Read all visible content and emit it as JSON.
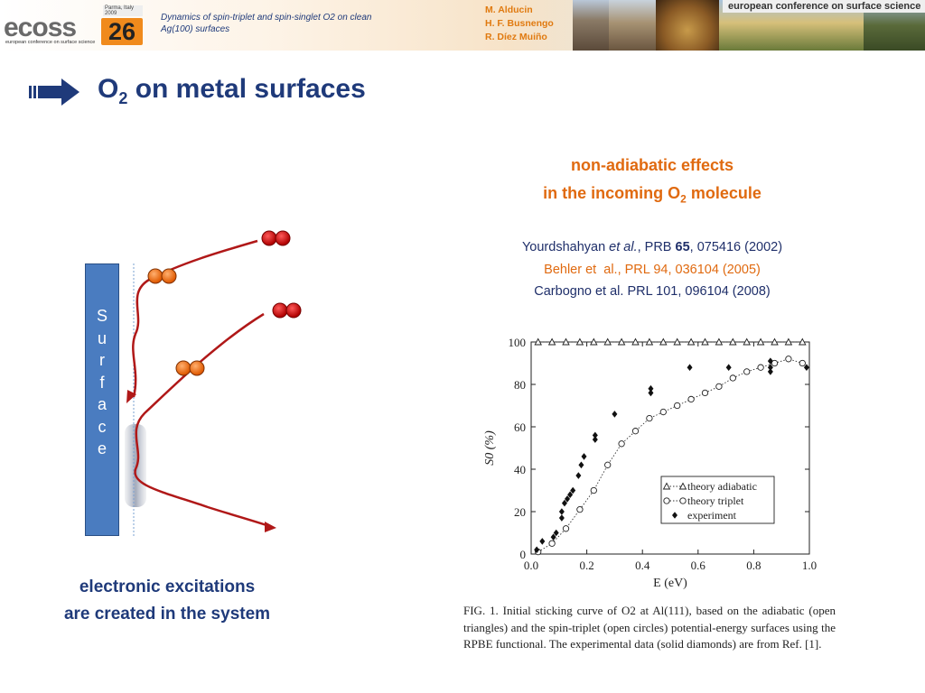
{
  "header": {
    "logo_text": "ecoss",
    "logo_number": "26",
    "logo_tag": "Parma, Italy 2009",
    "logo_sub": "european conference on surface science",
    "talk_title": "Dynamics of spin-triplet and spin-singlet O2 on clean Ag(100) surfaces",
    "authors": [
      "M. Alducin",
      "H. F. Busnengo",
      "R. Díez Muiño"
    ],
    "conference_banner": "european conference on surface science"
  },
  "slide": {
    "title_main": "O",
    "title_sub": "2",
    "title_rest": " on metal surfaces"
  },
  "right": {
    "heading_line1": "non-adiabatic effects",
    "heading_line2_pre": "in the incoming O",
    "heading_line2_sub": "2",
    "heading_line2_post": " molecule",
    "references": {
      "ref1_pre": "Yourdshahyan ",
      "ref1_etal": "et al.",
      "ref1_mid": ", PRB ",
      "ref1_vol": "65",
      "ref1_post": ", 075416 (2002)",
      "ref2": "Behler et  al., PRL 94, 036104 (2005)",
      "ref3": "Carbogno et al. PRL 101, 096104 (2008)"
    }
  },
  "left": {
    "surface_letters": [
      "S",
      "u",
      "r",
      "f",
      "a",
      "c",
      "e"
    ],
    "caption_line1": "electronic excitations",
    "caption_line2": "are created in the system"
  },
  "colors": {
    "title_blue": "#1f3a7a",
    "accent_orange": "#e06a10",
    "surface_blue": "#4a7cc0",
    "trajectory_red": "#b01818",
    "molecule_red": "#d01010",
    "molecule_orange": "#f07a20"
  },
  "chart_data": {
    "type": "scatter",
    "xlabel": "E (eV)",
    "ylabel": "S0 (%)",
    "xlim": [
      0.0,
      1.0
    ],
    "ylim": [
      0,
      100
    ],
    "xticks": [
      "0.0",
      "0.2",
      "0.4",
      "0.6",
      "0.8",
      "1.0"
    ],
    "yticks": [
      "0",
      "20",
      "40",
      "60",
      "80",
      "100"
    ],
    "legend_position": "bottom-right",
    "series": [
      {
        "name": "theory adiabatic",
        "marker": "open-triangle",
        "x": [
          0.025,
          0.075,
          0.125,
          0.175,
          0.225,
          0.275,
          0.325,
          0.375,
          0.425,
          0.475,
          0.525,
          0.575,
          0.625,
          0.675,
          0.725,
          0.775,
          0.825,
          0.875,
          0.925,
          0.975
        ],
        "y": [
          100,
          100,
          100,
          100,
          100,
          100,
          100,
          100,
          100,
          100,
          100,
          100,
          100,
          100,
          100,
          100,
          100,
          100,
          100,
          100
        ]
      },
      {
        "name": "theory triplet",
        "marker": "open-circle",
        "x": [
          0.025,
          0.075,
          0.125,
          0.175,
          0.225,
          0.275,
          0.325,
          0.375,
          0.425,
          0.475,
          0.525,
          0.575,
          0.625,
          0.675,
          0.725,
          0.775,
          0.825,
          0.875,
          0.925,
          0.975
        ],
        "y": [
          1,
          5,
          12,
          21,
          30,
          42,
          52,
          58,
          64,
          67,
          70,
          73,
          76,
          79,
          83,
          86,
          88,
          90,
          92,
          90
        ]
      },
      {
        "name": "experiment",
        "marker": "filled-diamond",
        "x": [
          0.02,
          0.04,
          0.08,
          0.09,
          0.11,
          0.11,
          0.12,
          0.13,
          0.14,
          0.15,
          0.17,
          0.18,
          0.19,
          0.23,
          0.23,
          0.3,
          0.43,
          0.43,
          0.57,
          0.71,
          0.86,
          0.86,
          0.86,
          0.99
        ],
        "y": [
          2,
          6,
          8,
          10,
          17,
          20,
          24,
          26,
          28,
          30,
          37,
          42,
          46,
          54,
          56,
          66,
          76,
          78,
          88,
          88,
          86,
          88,
          91,
          88
        ]
      }
    ],
    "figure_caption": "FIG. 1.   Initial sticking curve of O2 at Al(111), based on the adiabatic (open triangles) and the spin-triplet (open circles) potential-energy surfaces using the RPBE functional. The experimental data (solid diamonds) are from Ref. [1]."
  }
}
